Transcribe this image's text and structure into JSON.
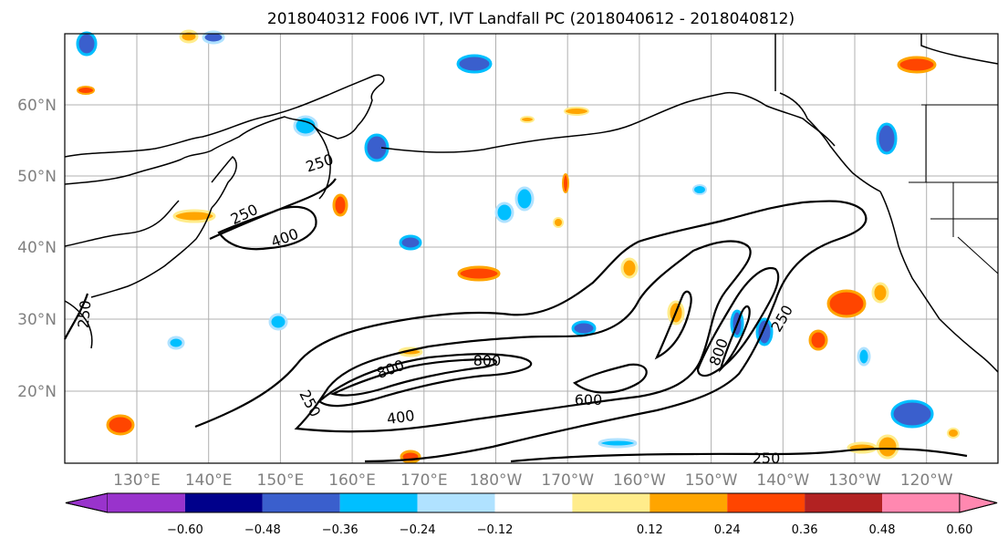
{
  "title": "2018040312 F006 IVT, IVT Landfall PC (2018040612 - 2018040812)",
  "lat_labels": [
    "60°N",
    "50°N",
    "40°N",
    "30°N",
    "20°N"
  ],
  "lon_labels": [
    "130°E",
    "140°E",
    "150°E",
    "160°E",
    "170°E",
    "180°W",
    "170°W",
    "160°W",
    "150°W",
    "140°W",
    "130°W",
    "120°W"
  ],
  "contour_labels": [
    "250",
    "250",
    "250",
    "400",
    "400",
    "800",
    "800",
    "600",
    "800",
    "250",
    "250",
    "250"
  ],
  "colorbar": {
    "colors": [
      "#9933CC",
      "#00008B",
      "#3A5FCD",
      "#00BFFF",
      "#B0E2FF",
      "#FFFFFF",
      "#FFEC8B",
      "#FFA500",
      "#FF4500",
      "#B22222",
      "#FF88B0"
    ],
    "tick_labels": [
      "−0.60",
      "−0.48",
      "−0.36",
      "−0.24",
      "−0.12",
      "0.12",
      "0.24",
      "0.36",
      "0.48",
      "0.60"
    ]
  },
  "colors": {
    "coast": "#000000",
    "grid": "#b0b0b0",
    "label": "#808080"
  }
}
